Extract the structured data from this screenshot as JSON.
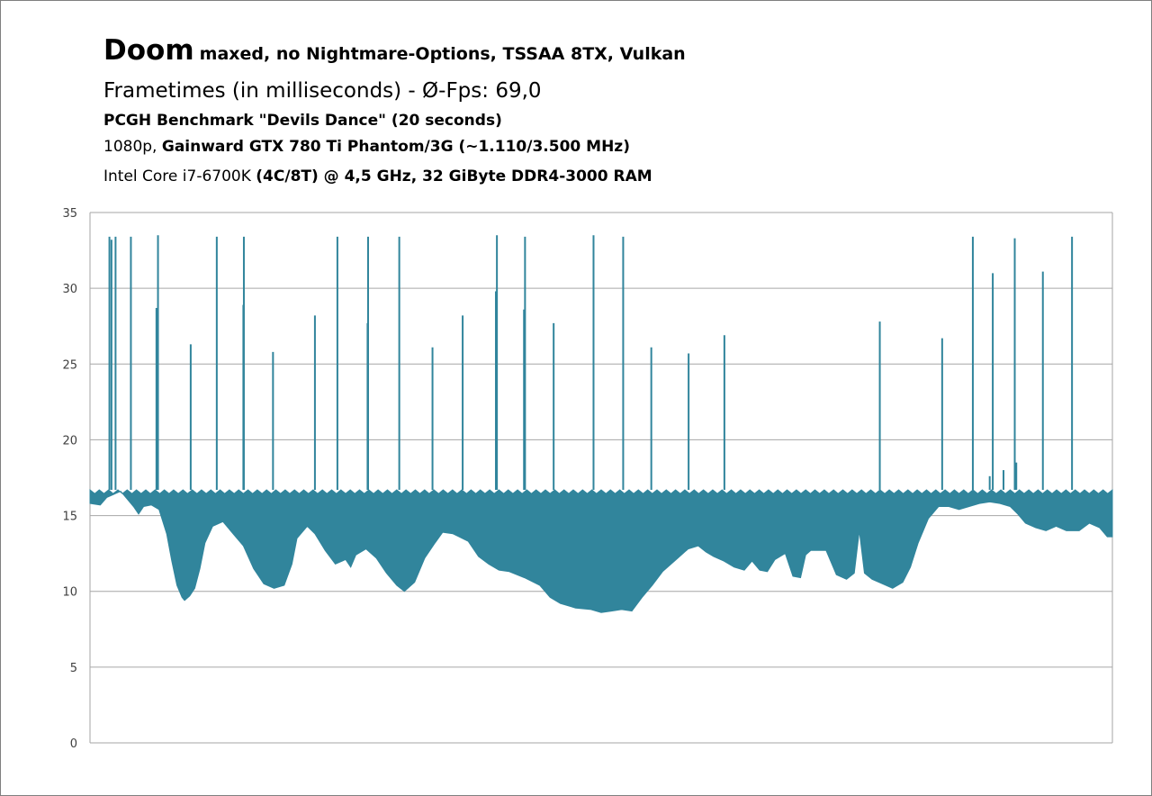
{
  "title": {
    "game": "Doom",
    "settings": "maxed, no Nightmare-Options,  TSSAA 8TX, Vulkan",
    "line2": "Frametimes (in milliseconds) - Ø-Fps: 69,0",
    "line3": "PCGH Benchmark \"Devils Dance\" (20 seconds)",
    "line4_plain": "1080p, ",
    "line4_bold": "Gainward GTX 780 Ti Phantom/3G (~1.110/3.500 MHz)",
    "line5_plain": "Intel Core i7-6700K ",
    "line5_bold": "(4C/8T) @ 4,5 GHz, 32 GiByte DDR4-3000 RAM"
  },
  "chart_data": {
    "type": "area",
    "xlabel": "",
    "ylabel": "",
    "ylim": [
      0,
      35
    ],
    "yticks": [
      0,
      5,
      10,
      15,
      20,
      25,
      30,
      35
    ],
    "grid": true,
    "series_color": "#31859c",
    "x_domain": [
      0,
      20
    ],
    "envelope_upper": [
      16.7,
      16.7
    ],
    "envelope_lower": [
      [
        0.0,
        15.8
      ],
      [
        0.2,
        15.7
      ],
      [
        0.33,
        16.2
      ],
      [
        0.6,
        16.6
      ],
      [
        0.85,
        15.6
      ],
      [
        0.95,
        15.1
      ],
      [
        1.05,
        15.6
      ],
      [
        1.2,
        15.7
      ],
      [
        1.35,
        15.4
      ],
      [
        1.5,
        13.8
      ],
      [
        1.6,
        12.0
      ],
      [
        1.7,
        10.4
      ],
      [
        1.8,
        9.6
      ],
      [
        1.85,
        9.4
      ],
      [
        1.95,
        9.7
      ],
      [
        2.05,
        10.2
      ],
      [
        2.15,
        11.5
      ],
      [
        2.25,
        13.2
      ],
      [
        2.4,
        14.3
      ],
      [
        2.6,
        14.6
      ],
      [
        2.8,
        13.8
      ],
      [
        3.0,
        13.0
      ],
      [
        3.2,
        11.5
      ],
      [
        3.4,
        10.5
      ],
      [
        3.6,
        10.2
      ],
      [
        3.8,
        10.4
      ],
      [
        3.95,
        11.8
      ],
      [
        4.05,
        13.5
      ],
      [
        4.25,
        14.3
      ],
      [
        4.4,
        13.8
      ],
      [
        4.6,
        12.7
      ],
      [
        4.8,
        11.8
      ],
      [
        5.0,
        12.1
      ],
      [
        5.1,
        11.6
      ],
      [
        5.2,
        12.4
      ],
      [
        5.4,
        12.8
      ],
      [
        5.6,
        12.2
      ],
      [
        5.8,
        11.2
      ],
      [
        6.0,
        10.4
      ],
      [
        6.15,
        10.0
      ],
      [
        6.35,
        10.6
      ],
      [
        6.55,
        12.2
      ],
      [
        6.75,
        13.2
      ],
      [
        6.9,
        13.9
      ],
      [
        7.1,
        13.8
      ],
      [
        7.4,
        13.3
      ],
      [
        7.6,
        12.3
      ],
      [
        7.8,
        11.8
      ],
      [
        8.0,
        11.4
      ],
      [
        8.2,
        11.3
      ],
      [
        8.5,
        10.9
      ],
      [
        8.8,
        10.4
      ],
      [
        9.0,
        9.6
      ],
      [
        9.2,
        9.2
      ],
      [
        9.5,
        8.9
      ],
      [
        9.8,
        8.8
      ],
      [
        10.0,
        8.6
      ],
      [
        10.2,
        8.7
      ],
      [
        10.4,
        8.8
      ],
      [
        10.6,
        8.7
      ],
      [
        10.8,
        9.6
      ],
      [
        11.0,
        10.4
      ],
      [
        11.2,
        11.3
      ],
      [
        11.5,
        12.2
      ],
      [
        11.7,
        12.8
      ],
      [
        11.9,
        13.0
      ],
      [
        12.05,
        12.6
      ],
      [
        12.2,
        12.3
      ],
      [
        12.4,
        12.0
      ],
      [
        12.6,
        11.6
      ],
      [
        12.8,
        11.4
      ],
      [
        12.95,
        12.0
      ],
      [
        13.1,
        11.4
      ],
      [
        13.25,
        11.3
      ],
      [
        13.4,
        12.1
      ],
      [
        13.6,
        12.5
      ],
      [
        13.75,
        11.0
      ],
      [
        13.9,
        10.9
      ],
      [
        14.0,
        12.4
      ],
      [
        14.1,
        12.7
      ],
      [
        14.4,
        12.7
      ],
      [
        14.6,
        11.1
      ],
      [
        14.8,
        10.8
      ],
      [
        14.95,
        11.2
      ],
      [
        15.05,
        14.0
      ],
      [
        15.15,
        11.2
      ],
      [
        15.3,
        10.8
      ],
      [
        15.5,
        10.5
      ],
      [
        15.7,
        10.2
      ],
      [
        15.9,
        10.6
      ],
      [
        16.05,
        11.6
      ],
      [
        16.2,
        13.2
      ],
      [
        16.4,
        14.8
      ],
      [
        16.6,
        15.6
      ],
      [
        16.8,
        15.6
      ],
      [
        17.0,
        15.4
      ],
      [
        17.4,
        15.8
      ],
      [
        17.6,
        15.9
      ],
      [
        17.8,
        15.8
      ],
      [
        18.0,
        15.6
      ],
      [
        18.15,
        15.1
      ],
      [
        18.3,
        14.5
      ],
      [
        18.5,
        14.2
      ],
      [
        18.7,
        14.0
      ],
      [
        18.9,
        14.3
      ],
      [
        19.1,
        14.0
      ],
      [
        19.35,
        14.0
      ],
      [
        19.55,
        14.5
      ],
      [
        19.75,
        14.2
      ],
      [
        19.9,
        13.6
      ],
      [
        20.0,
        13.6
      ]
    ],
    "spikes": [
      [
        0.38,
        33.4
      ],
      [
        0.42,
        33.2
      ],
      [
        0.5,
        33.4
      ],
      [
        0.8,
        33.4
      ],
      [
        1.33,
        33.5
      ],
      [
        1.3,
        28.7
      ],
      [
        1.97,
        26.3
      ],
      [
        2.48,
        33.4
      ],
      [
        3.01,
        33.4
      ],
      [
        3.0,
        28.9
      ],
      [
        3.58,
        25.8
      ],
      [
        4.4,
        28.2
      ],
      [
        4.84,
        33.4
      ],
      [
        5.44,
        33.4
      ],
      [
        5.43,
        27.7
      ],
      [
        6.05,
        33.4
      ],
      [
        6.7,
        26.1
      ],
      [
        7.29,
        28.2
      ],
      [
        7.96,
        33.5
      ],
      [
        7.94,
        29.8
      ],
      [
        8.51,
        33.4
      ],
      [
        8.49,
        28.6
      ],
      [
        9.07,
        27.7
      ],
      [
        9.85,
        33.5
      ],
      [
        10.43,
        33.4
      ],
      [
        10.98,
        26.1
      ],
      [
        11.71,
        25.7
      ],
      [
        12.41,
        26.9
      ],
      [
        15.45,
        27.8
      ],
      [
        16.67,
        26.7
      ],
      [
        17.27,
        33.4
      ],
      [
        17.66,
        31.0
      ],
      [
        17.6,
        17.6
      ],
      [
        17.87,
        18.0
      ],
      [
        18.09,
        33.3
      ],
      [
        18.12,
        18.5
      ],
      [
        18.64,
        31.1
      ],
      [
        19.21,
        33.4
      ]
    ]
  }
}
